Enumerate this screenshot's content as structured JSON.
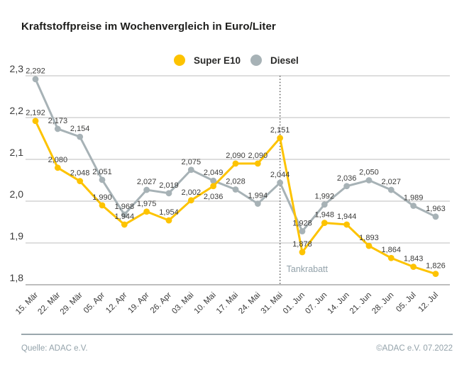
{
  "title": "Kraftstoffpreise im Wochenvergleich in Euro/Liter",
  "chart_data": {
    "type": "line",
    "title": "Kraftstoffpreise im Wochenvergleich in Euro/Liter",
    "x": [
      "15. Mär",
      "22. Mär",
      "29. Mär",
      "05. Apr",
      "12. Apr",
      "19. Apr",
      "26. Apr",
      "03. Mai",
      "10. Mai",
      "17. Mai",
      "24. Mai",
      "31. Mai",
      "01. Jun",
      "07. Jun",
      "14. Jun",
      "21. Jun",
      "28. Jun",
      "05. Jul",
      "12. Jul"
    ],
    "series": [
      {
        "name": "Super E10",
        "color": "#fdc300",
        "values": [
          2.192,
          2.08,
          2.048,
          1.99,
          1.944,
          1.975,
          1.954,
          2.002,
          2.036,
          2.09,
          2.09,
          2.151,
          1.878,
          1.948,
          1.944,
          1.893,
          1.864,
          1.843,
          1.826
        ]
      },
      {
        "name": "Diesel",
        "color": "#a7b2b6",
        "values": [
          2.292,
          2.173,
          2.154,
          2.051,
          1.968,
          2.027,
          2.019,
          2.075,
          2.049,
          2.028,
          1.994,
          2.044,
          1.928,
          1.992,
          2.036,
          2.05,
          2.027,
          1.989,
          1.963
        ]
      }
    ],
    "ylim": [
      1.8,
      2.3
    ],
    "yticks": [
      2.3,
      2.2,
      2.1,
      2.0,
      1.9,
      1.8
    ],
    "ytick_labels": [
      "2,3",
      "2,2",
      "2,1",
      "2,0",
      "1,9",
      "1,8"
    ],
    "decimal_separator": ",",
    "grid": true,
    "legend_position": "top-center",
    "annotation": {
      "label": "Tankrabatt",
      "x_category": "31. Mai",
      "x_index": 11,
      "style": "dotted-vertical-line"
    },
    "colors": {
      "grid": "#bcbcbc",
      "axis": "#a9a9a9",
      "data_label": "#3c3c3b",
      "tick_label": "#3a3a3a",
      "annotation_label": "#93a2aa",
      "annotation_line": "#555555"
    }
  },
  "footer": {
    "source": "Quelle: ADAC e.V.",
    "copyright": "©ADAC e.V. 07.2022"
  }
}
